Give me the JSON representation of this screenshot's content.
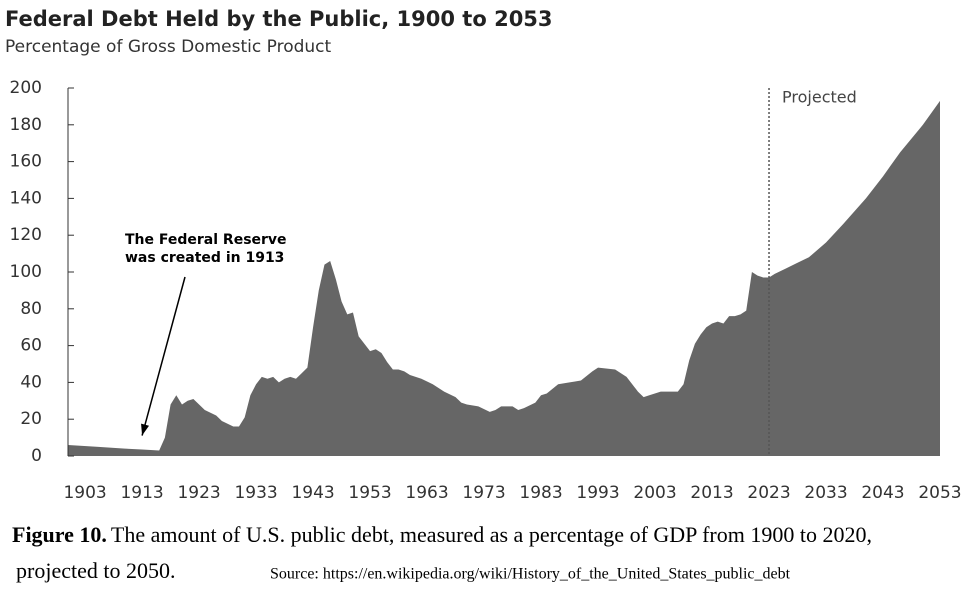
{
  "chart_data": {
    "type": "area",
    "title": "Federal Debt Held by the Public, 1900 to 2053",
    "subtitle": "Percentage of Gross Domestic Product",
    "x": [
      1900,
      1905,
      1910,
      1913,
      1916,
      1917,
      1918,
      1919,
      1920,
      1921,
      1922,
      1923,
      1924,
      1926,
      1927,
      1929,
      1930,
      1931,
      1932,
      1933,
      1934,
      1935,
      1936,
      1937,
      1938,
      1939,
      1940,
      1941,
      1942,
      1943,
      1944,
      1945,
      1946,
      1947,
      1948,
      1949,
      1950,
      1951,
      1952,
      1953,
      1954,
      1955,
      1956,
      1957,
      1958,
      1959,
      1960,
      1962,
      1964,
      1966,
      1968,
      1969,
      1970,
      1972,
      1974,
      1975,
      1976,
      1978,
      1979,
      1980,
      1982,
      1983,
      1984,
      1986,
      1988,
      1990,
      1992,
      1993,
      1996,
      1998,
      2000,
      2001,
      2002,
      2004,
      2006,
      2007,
      2008,
      2009,
      2010,
      2011,
      2012,
      2013,
      2014,
      2015,
      2016,
      2017,
      2018,
      2019,
      2020,
      2021,
      2022,
      2023,
      2024,
      2026,
      2028,
      2030,
      2033,
      2036,
      2040,
      2043,
      2046,
      2050,
      2053
    ],
    "values": [
      6,
      5,
      4,
      3.5,
      3,
      10,
      28,
      33,
      28,
      30,
      31,
      28,
      25,
      22,
      19,
      16,
      16,
      21,
      33,
      39,
      43,
      42,
      43,
      40,
      42,
      43,
      42,
      45,
      48,
      70,
      90,
      104,
      106,
      96,
      84,
      77,
      78,
      65,
      61,
      57,
      58,
      56,
      51,
      47,
      47,
      46,
      44,
      42,
      39,
      35,
      32,
      29,
      28,
      27,
      24,
      25,
      27,
      27,
      25,
      26,
      29,
      33,
      34,
      39,
      40,
      41,
      46,
      48,
      47,
      43,
      35,
      32,
      33,
      35,
      35,
      35,
      39,
      52,
      61,
      66,
      70,
      72,
      73,
      72,
      76,
      76,
      77,
      79,
      100,
      98,
      97,
      97,
      99,
      102,
      105,
      108,
      116,
      126,
      140,
      152,
      165,
      180,
      193
    ],
    "color": "#666666",
    "xlim": [
      1900,
      2053
    ],
    "ylim": [
      0,
      200
    ],
    "xticks": [
      1903,
      1913,
      1923,
      1933,
      1943,
      1953,
      1963,
      1973,
      1983,
      1993,
      2003,
      2013,
      2023,
      2033,
      2043,
      2053
    ],
    "yticks": [
      0,
      20,
      40,
      60,
      80,
      100,
      120,
      140,
      160,
      180,
      200
    ],
    "grid": false,
    "projection_start": 2023,
    "projection_label": "Projected",
    "annotation": {
      "lines": [
        "The Federal Reserve",
        "was created in 1913"
      ],
      "x": 1913,
      "y": 3.5
    }
  },
  "caption": {
    "label": "Figure 10.",
    "lines": [
      "The amount of U.S. public debt, measured as a percentage of GDP from 1900 to 2020,",
      "projected to 2050."
    ],
    "source": "Source: https://en.wikipedia.org/wiki/History_of_the_United_States_public_debt"
  }
}
